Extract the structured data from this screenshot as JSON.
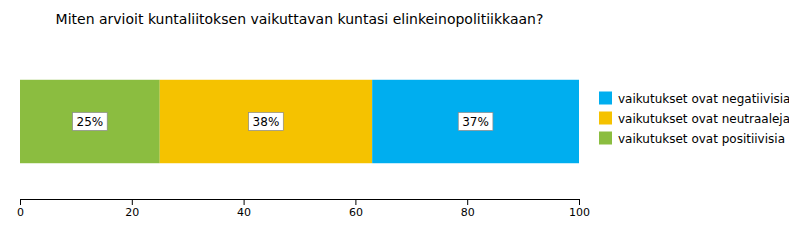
{
  "chart_data": {
    "type": "bar",
    "orientation": "horizontal",
    "stacked": true,
    "title": "Miten arvioit kuntaliitoksen vaikuttavan kuntasi elinkeinopolitiikkaan?",
    "categories": [
      null
    ],
    "series": [
      {
        "name": "vaikutukset ovat positiivisia",
        "color": "#8BBD40",
        "values": [
          25
        ],
        "value_labels": [
          "25%"
        ]
      },
      {
        "name": "vaikutukset ovat neutraaleja",
        "color": "#F5C200",
        "values": [
          38
        ],
        "value_labels": [
          "38%"
        ]
      },
      {
        "name": "vaikutukset ovat negatiivisia",
        "color": "#00AEEF",
        "values": [
          37
        ],
        "value_labels": [
          "37%"
        ]
      }
    ],
    "xlim": [
      0,
      100
    ],
    "xticks": [
      0,
      20,
      40,
      60,
      80,
      100
    ],
    "data_labels": true,
    "legend": "right",
    "grid": false,
    "tick_labels": "x"
  }
}
